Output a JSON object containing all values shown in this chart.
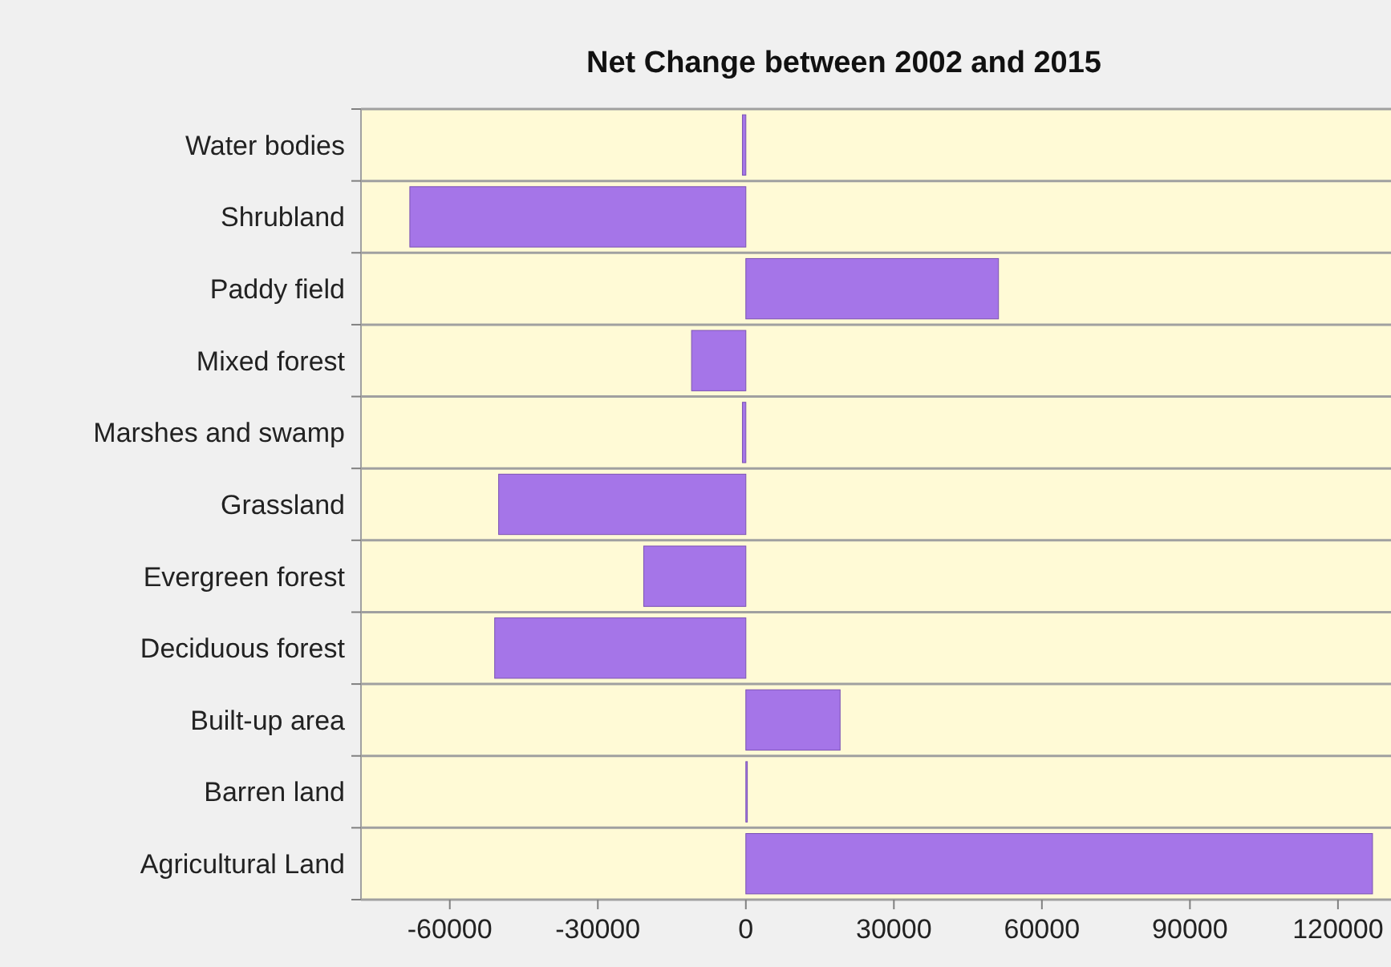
{
  "chart_data": {
    "type": "bar",
    "orientation": "horizontal",
    "title": "Net Change between 2002 and 2015",
    "categories": [
      "Water bodies",
      "Shrubland",
      "Paddy field",
      "Mixed forest",
      "Marshes and swamp",
      "Grassland",
      "Evergreen forest",
      "Deciduous forest",
      "Built-up area",
      "Barren land",
      "Agricultural Land"
    ],
    "values": [
      -700,
      -68100,
      51200,
      -11000,
      -700,
      -50100,
      -20700,
      -50900,
      19100,
      300,
      127000
    ],
    "color": "#a575e8",
    "xlim": [
      -78000,
      134000
    ],
    "xticks": [
      -60000,
      -30000,
      0,
      30000,
      60000,
      90000,
      120000
    ],
    "grid": "y"
  }
}
